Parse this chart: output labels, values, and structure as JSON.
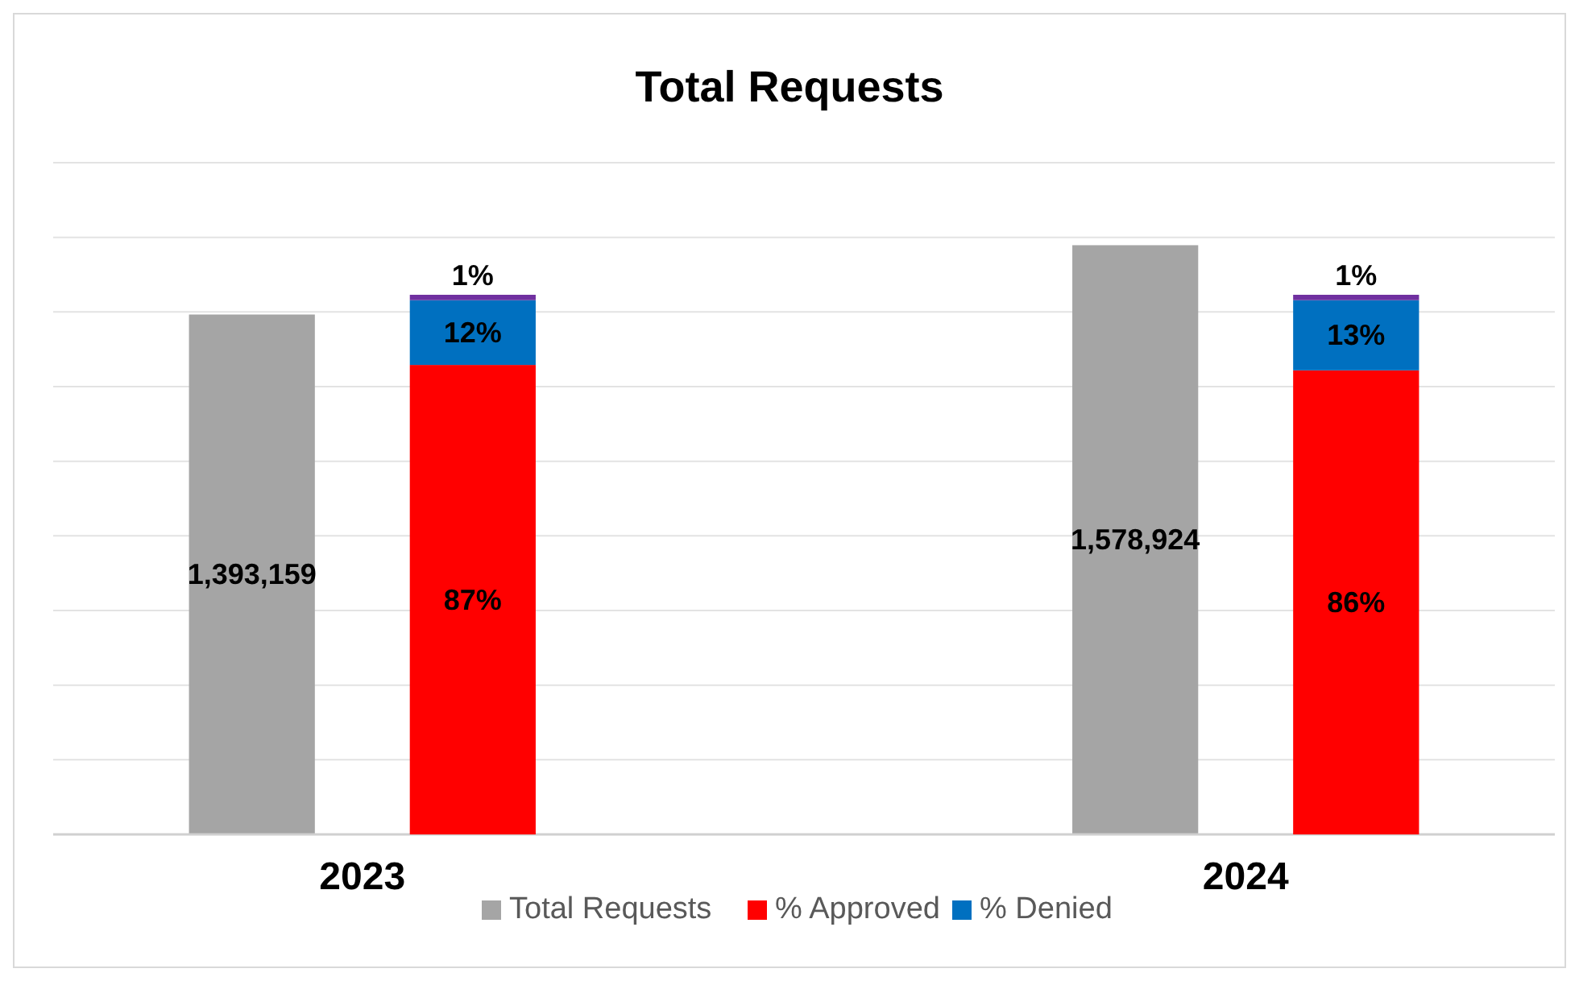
{
  "chart_data": [
    {
      "type": "bar",
      "title": "Total Requests",
      "categories": [
        "2023",
        "2024"
      ],
      "series": [
        {
          "name": "Total Requests",
          "color": "#a5a5a5",
          "values": [
            1393159,
            1578924
          ],
          "value_labels": [
            "1,393,159",
            "1,578,924"
          ]
        }
      ],
      "ylim": [
        0,
        1800000
      ],
      "yticks": [
        {
          "value": 0,
          "label": null
        },
        {
          "value": 200000,
          "label": null
        },
        {
          "value": 400000,
          "label": null
        },
        {
          "value": 600000,
          "label": null
        },
        {
          "value": 800000,
          "label": null
        },
        {
          "value": 1000000,
          "label": null
        },
        {
          "value": 1200000,
          "label": null
        },
        {
          "value": 1400000,
          "label": null
        },
        {
          "value": 1600000,
          "label": null
        },
        {
          "value": 1800000,
          "label": null
        }
      ],
      "tick_labels": "x",
      "grid": "y",
      "legend": "bottom"
    },
    {
      "type": "bar",
      "categories": [
        null,
        null
      ],
      "stacked": true,
      "series": [
        {
          "name": "% Approved",
          "color": "#ff0000",
          "values": [
            87,
            86
          ],
          "value_labels": [
            "87%",
            "86%"
          ]
        },
        {
          "name": "% Denied",
          "color": "#0070c0",
          "values": [
            12,
            13
          ],
          "value_labels": [
            "12%",
            "13%"
          ]
        },
        {
          "color": "#7030a0",
          "values": [
            1,
            1
          ],
          "value_labels": [
            "1%",
            "1%"
          ]
        }
      ],
      "legend": "bottom"
    }
  ]
}
